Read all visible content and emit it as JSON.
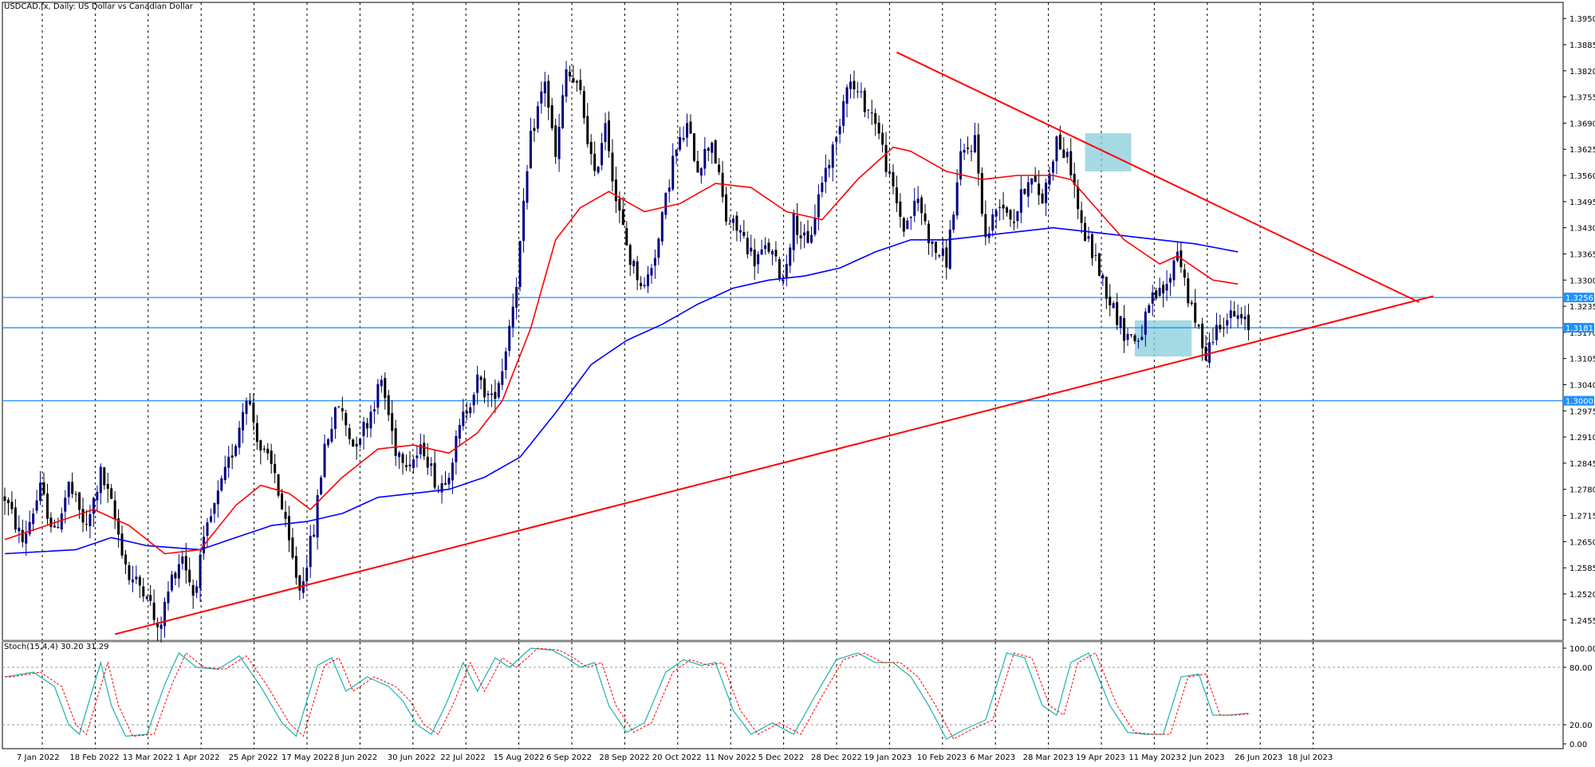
{
  "header": {
    "title": "USDCAD.fx, Daily:  US Dollar vs Canadian Dollar",
    "stoch_label": "Stoch(15,4,4) 30.20 31.29"
  },
  "colors": {
    "bull_candle": "#000080",
    "bear_candle": "#000000",
    "ma_fast": "#ff0000",
    "ma_slow": "#0000ff",
    "trendline": "#ff0000",
    "hline": "#1e90ff",
    "stoch_main": "#20b2aa",
    "stoch_signal": "#ff0000",
    "highlight": "#87cedc"
  },
  "chart_data": [
    {
      "type": "candlestick",
      "symbol": "USDCAD.fx",
      "timeframe": "Daily",
      "title": "USDCAD.fx, Daily:  US Dollar vs Canadian Dollar",
      "ylim": [
        1.2405,
        1.399
      ],
      "y_ticks": [
        1.395,
        1.3885,
        1.382,
        1.3755,
        1.369,
        1.3625,
        1.356,
        1.3495,
        1.343,
        1.3365,
        1.33,
        1.3235,
        1.317,
        1.3105,
        1.304,
        1.2975,
        1.291,
        1.2845,
        1.278,
        1.2715,
        1.265,
        1.2585,
        1.252,
        1.2455
      ],
      "y_tick_labels": [
        "1.39500",
        "1.38850",
        "1.38200",
        "1.37550",
        "1.36900",
        "1.36250",
        "1.35600",
        "1.34950",
        "1.34300",
        "1.33650",
        "1.33000",
        "1.32350",
        "1.31700",
        "1.31050",
        "1.30400",
        "1.29750",
        "1.29100",
        "1.28450",
        "1.27800",
        "1.27150",
        "1.26500",
        "1.25850",
        "1.25200",
        "1.24550"
      ],
      "x_tick_labels": [
        "7 Jan 2022",
        "18 Feb 2022",
        "13 Mar 2022",
        "1 Apr 2022",
        "25 Apr 2022",
        "17 May 2022",
        "8 Jun 2022",
        "30 Jun 2022",
        "22 Jul 2022",
        "15 Aug 2022",
        "6 Sep 2022",
        "28 Sep 2022",
        "20 Oct 2022",
        "11 Nov 2022",
        "5 Dec 2022",
        "28 Dec 2022",
        "19 Jan 2023",
        "10 Feb 2023",
        "6 Mar 2023",
        "28 Mar 2023",
        "19 Apr 2023",
        "11 May 2023",
        "2 Jun 2023",
        "26 Jun 2023",
        "18 Jul 2023"
      ],
      "grid": "vertical dashed",
      "anchors": [
        [
          0,
          1.276
        ],
        [
          5,
          1.265
        ],
        [
          10,
          1.278
        ],
        [
          14,
          1.267
        ],
        [
          18,
          1.279
        ],
        [
          23,
          1.268
        ],
        [
          27,
          1.282
        ],
        [
          30,
          1.274
        ],
        [
          35,
          1.256
        ],
        [
          40,
          1.253
        ],
        [
          43,
          1.242
        ],
        [
          47,
          1.256
        ],
        [
          50,
          1.262
        ],
        [
          53,
          1.252
        ],
        [
          57,
          1.268
        ],
        [
          61,
          1.279
        ],
        [
          65,
          1.29
        ],
        [
          68,
          1.302
        ],
        [
          72,
          1.288
        ],
        [
          76,
          1.282
        ],
        [
          80,
          1.264
        ],
        [
          83,
          1.253
        ],
        [
          87,
          1.268
        ],
        [
          90,
          1.289
        ],
        [
          94,
          1.299
        ],
        [
          98,
          1.289
        ],
        [
          102,
          1.295
        ],
        [
          106,
          1.305
        ],
        [
          110,
          1.288
        ],
        [
          114,
          1.285
        ],
        [
          118,
          1.288
        ],
        [
          122,
          1.278
        ],
        [
          125,
          1.283
        ],
        [
          129,
          1.296
        ],
        [
          133,
          1.305
        ],
        [
          137,
          1.3
        ],
        [
          140,
          1.308
        ],
        [
          144,
          1.33
        ],
        [
          148,
          1.365
        ],
        [
          152,
          1.38
        ],
        [
          155,
          1.36
        ],
        [
          158,
          1.382
        ],
        [
          162,
          1.376
        ],
        [
          166,
          1.355
        ],
        [
          169,
          1.37
        ],
        [
          172,
          1.35
        ],
        [
          176,
          1.335
        ],
        [
          180,
          1.328
        ],
        [
          184,
          1.34
        ],
        [
          188,
          1.36
        ],
        [
          192,
          1.368
        ],
        [
          195,
          1.358
        ],
        [
          199,
          1.365
        ],
        [
          203,
          1.345
        ],
        [
          207,
          1.342
        ],
        [
          211,
          1.335
        ],
        [
          215,
          1.338
        ],
        [
          219,
          1.33
        ],
        [
          222,
          1.345
        ],
        [
          226,
          1.338
        ],
        [
          230,
          1.355
        ],
        [
          234,
          1.365
        ],
        [
          237,
          1.38
        ],
        [
          241,
          1.375
        ],
        [
          245,
          1.37
        ],
        [
          249,
          1.355
        ],
        [
          253,
          1.343
        ],
        [
          257,
          1.35
        ],
        [
          261,
          1.338
        ],
        [
          265,
          1.335
        ],
        [
          269,
          1.36
        ],
        [
          273,
          1.365
        ],
        [
          276,
          1.34
        ],
        [
          280,
          1.35
        ],
        [
          284,
          1.345
        ],
        [
          288,
          1.356
        ],
        [
          292,
          1.35
        ],
        [
          296,
          1.365
        ],
        [
          300,
          1.358
        ],
        [
          303,
          1.343
        ],
        [
          307,
          1.335
        ],
        [
          311,
          1.325
        ],
        [
          315,
          1.317
        ],
        [
          319,
          1.315
        ],
        [
          323,
          1.325
        ],
        [
          327,
          1.328
        ],
        [
          330,
          1.338
        ],
        [
          334,
          1.322
        ],
        [
          338,
          1.312
        ],
        [
          342,
          1.32
        ],
        [
          346,
          1.321
        ],
        [
          350,
          1.3185
        ]
      ],
      "ma_fast_anchors": [
        [
          0,
          1.2655
        ],
        [
          15,
          1.27
        ],
        [
          25,
          1.273
        ],
        [
          35,
          1.269
        ],
        [
          45,
          1.262
        ],
        [
          55,
          1.263
        ],
        [
          65,
          1.274
        ],
        [
          72,
          1.279
        ],
        [
          80,
          1.277
        ],
        [
          86,
          1.273
        ],
        [
          95,
          1.281
        ],
        [
          105,
          1.288
        ],
        [
          115,
          1.289
        ],
        [
          125,
          1.287
        ],
        [
          133,
          1.292
        ],
        [
          140,
          1.3
        ],
        [
          148,
          1.318
        ],
        [
          155,
          1.34
        ],
        [
          162,
          1.348
        ],
        [
          170,
          1.352
        ],
        [
          180,
          1.347
        ],
        [
          190,
          1.349
        ],
        [
          200,
          1.354
        ],
        [
          210,
          1.353
        ],
        [
          220,
          1.347
        ],
        [
          230,
          1.345
        ],
        [
          240,
          1.355
        ],
        [
          250,
          1.363
        ],
        [
          255,
          1.362
        ],
        [
          265,
          1.357
        ],
        [
          275,
          1.355
        ],
        [
          285,
          1.356
        ],
        [
          295,
          1.356
        ],
        [
          300,
          1.355
        ],
        [
          305,
          1.35
        ],
        [
          315,
          1.34
        ],
        [
          325,
          1.334
        ],
        [
          330,
          1.336
        ],
        [
          340,
          1.33
        ],
        [
          347,
          1.329
        ]
      ],
      "ma_slow_anchors": [
        [
          0,
          1.262
        ],
        [
          20,
          1.263
        ],
        [
          30,
          1.266
        ],
        [
          40,
          1.264
        ],
        [
          55,
          1.263
        ],
        [
          65,
          1.266
        ],
        [
          75,
          1.269
        ],
        [
          85,
          1.27
        ],
        [
          95,
          1.272
        ],
        [
          105,
          1.276
        ],
        [
          115,
          1.277
        ],
        [
          125,
          1.278
        ],
        [
          135,
          1.281
        ],
        [
          145,
          1.286
        ],
        [
          155,
          1.297
        ],
        [
          165,
          1.309
        ],
        [
          175,
          1.315
        ],
        [
          185,
          1.319
        ],
        [
          195,
          1.324
        ],
        [
          205,
          1.328
        ],
        [
          215,
          1.33
        ],
        [
          225,
          1.331
        ],
        [
          235,
          1.333
        ],
        [
          245,
          1.337
        ],
        [
          255,
          1.34
        ],
        [
          265,
          1.34
        ],
        [
          275,
          1.341
        ],
        [
          285,
          1.342
        ],
        [
          295,
          1.343
        ],
        [
          305,
          1.342
        ],
        [
          315,
          1.341
        ],
        [
          325,
          1.34
        ],
        [
          335,
          1.339
        ],
        [
          347,
          1.337
        ]
      ],
      "horizontal_lines": [
        {
          "value": 1.32567,
          "label": "1.32567"
        },
        {
          "value": 1.31815,
          "label": "1.31815"
        },
        {
          "value": 1.30001,
          "label": "1.30001"
        }
      ],
      "trendlines": [
        {
          "name": "resistance",
          "from": [
            251,
            1.3866
          ],
          "to": [
            398,
            1.3245
          ]
        },
        {
          "name": "support",
          "from": [
            31,
            1.242
          ],
          "to": [
            402,
            1.326
          ]
        }
      ],
      "highlights": [
        {
          "x": [
            304,
            317
          ],
          "y": [
            1.357,
            1.3665
          ]
        },
        {
          "x": [
            318,
            334
          ],
          "y": [
            1.311,
            1.32
          ]
        }
      ]
    },
    {
      "type": "line",
      "title": "Stoch(15,4,4) 30.20 31.29",
      "ylim": [
        0,
        100
      ],
      "y_ticks": [
        100,
        80,
        20,
        0
      ],
      "y_tick_labels": [
        "100.00",
        "80.00",
        "20.00",
        "0.00"
      ],
      "levels": [
        80,
        20
      ],
      "series_anchors": [
        [
          0,
          70
        ],
        [
          8,
          75
        ],
        [
          14,
          60
        ],
        [
          18,
          20
        ],
        [
          21,
          10
        ],
        [
          24,
          48
        ],
        [
          27,
          85
        ],
        [
          30,
          40
        ],
        [
          34,
          8
        ],
        [
          40,
          10
        ],
        [
          45,
          62
        ],
        [
          49,
          95
        ],
        [
          54,
          80
        ],
        [
          60,
          78
        ],
        [
          66,
          92
        ],
        [
          72,
          60
        ],
        [
          78,
          22
        ],
        [
          82,
          8
        ],
        [
          88,
          82
        ],
        [
          92,
          90
        ],
        [
          96,
          55
        ],
        [
          102,
          70
        ],
        [
          108,
          60
        ],
        [
          112,
          45
        ],
        [
          116,
          20
        ],
        [
          120,
          10
        ],
        [
          124,
          40
        ],
        [
          129,
          85
        ],
        [
          133,
          55
        ],
        [
          138,
          90
        ],
        [
          142,
          80
        ],
        [
          148,
          100
        ],
        [
          154,
          98
        ],
        [
          158,
          90
        ],
        [
          162,
          80
        ],
        [
          166,
          85
        ],
        [
          170,
          40
        ],
        [
          175,
          12
        ],
        [
          180,
          22
        ],
        [
          186,
          75
        ],
        [
          191,
          88
        ],
        [
          196,
          82
        ],
        [
          200,
          85
        ],
        [
          205,
          35
        ],
        [
          210,
          10
        ],
        [
          216,
          22
        ],
        [
          222,
          10
        ],
        [
          228,
          50
        ],
        [
          234,
          88
        ],
        [
          240,
          95
        ],
        [
          245,
          85
        ],
        [
          250,
          85
        ],
        [
          255,
          70
        ],
        [
          260,
          40
        ],
        [
          265,
          5
        ],
        [
          270,
          15
        ],
        [
          276,
          25
        ],
        [
          282,
          95
        ],
        [
          287,
          90
        ],
        [
          292,
          40
        ],
        [
          296,
          30
        ],
        [
          300,
          85
        ],
        [
          305,
          95
        ],
        [
          311,
          40
        ],
        [
          316,
          12
        ],
        [
          321,
          10
        ],
        [
          326,
          10
        ],
        [
          331,
          70
        ],
        [
          336,
          73
        ],
        [
          340,
          30
        ],
        [
          344,
          30
        ],
        [
          350,
          32
        ]
      ]
    }
  ]
}
